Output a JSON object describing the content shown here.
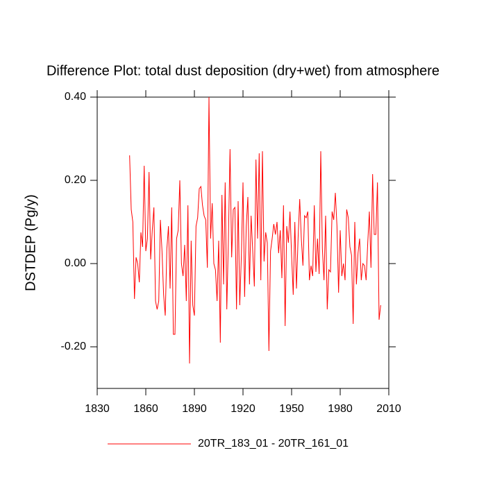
{
  "chart_data": {
    "type": "line",
    "title": "Difference Plot: total dust deposition (dry+wet) from atmosphere",
    "ylabel": "DSTDEP  (Pg/y)",
    "x": [
      1850,
      1851,
      1852,
      1853,
      1854,
      1855,
      1856,
      1857,
      1858,
      1859,
      1860,
      1861,
      1862,
      1863,
      1864,
      1865,
      1866,
      1867,
      1868,
      1869,
      1870,
      1871,
      1872,
      1873,
      1874,
      1875,
      1876,
      1877,
      1878,
      1879,
      1880,
      1881,
      1882,
      1883,
      1884,
      1885,
      1886,
      1887,
      1888,
      1889,
      1890,
      1891,
      1892,
      1893,
      1894,
      1895,
      1896,
      1897,
      1898,
      1899,
      1900,
      1901,
      1902,
      1903,
      1904,
      1905,
      1906,
      1907,
      1908,
      1909,
      1910,
      1911,
      1912,
      1913,
      1914,
      1915,
      1916,
      1917,
      1918,
      1919,
      1920,
      1921,
      1922,
      1923,
      1924,
      1925,
      1926,
      1927,
      1928,
      1929,
      1930,
      1931,
      1932,
      1933,
      1934,
      1935,
      1936,
      1937,
      1938,
      1939,
      1940,
      1941,
      1942,
      1943,
      1944,
      1945,
      1946,
      1947,
      1948,
      1949,
      1950,
      1951,
      1952,
      1953,
      1954,
      1955,
      1956,
      1957,
      1958,
      1959,
      1960,
      1961,
      1962,
      1963,
      1964,
      1965,
      1966,
      1967,
      1968,
      1969,
      1970,
      1971,
      1972,
      1973,
      1974,
      1975,
      1976,
      1977,
      1978,
      1979,
      1980,
      1981,
      1982,
      1983,
      1984,
      1985,
      1986,
      1987,
      1988,
      1989,
      1990,
      1991,
      1992,
      1993,
      1994,
      1995,
      1996,
      1997,
      1998,
      1999,
      2000,
      2001,
      2002,
      2003,
      2004,
      2005
    ],
    "series": [
      {
        "name": "20TR_183_01 - 20TR_161_01",
        "color": "#ff0000",
        "values": [
          0.26,
          0.13,
          0.1,
          -0.085,
          0.015,
          0.0,
          -0.045,
          0.075,
          0.04,
          0.235,
          0.03,
          0.06,
          0.22,
          0.01,
          0.08,
          0.135,
          -0.09,
          -0.11,
          -0.09,
          0.105,
          0.03,
          -0.075,
          -0.125,
          0.035,
          0.09,
          -0.06,
          0.135,
          -0.17,
          -0.17,
          0.06,
          0.08,
          0.2,
          0.0,
          -0.03,
          0.045,
          -0.09,
          0.14,
          -0.24,
          0.055,
          -0.1,
          -0.125,
          0.09,
          0.11,
          0.18,
          0.185,
          0.14,
          0.115,
          0.105,
          -0.01,
          0.4,
          0.06,
          0.145,
          0.0,
          -0.015,
          -0.09,
          0.055,
          -0.19,
          0.165,
          -0.05,
          0.195,
          -0.11,
          0.06,
          0.275,
          0.015,
          0.13,
          0.135,
          -0.11,
          0.15,
          -0.1,
          0.02,
          0.195,
          -0.08,
          0.09,
          0.16,
          -0.05,
          0.115,
          0.03,
          -0.055,
          0.25,
          0.06,
          0.265,
          -0.04,
          0.27,
          0.005,
          0.075,
          0.05,
          -0.21,
          0.03,
          0.06,
          0.095,
          0.07,
          0.1,
          0.025,
          0.08,
          -0.035,
          0.14,
          -0.15,
          0.09,
          0.05,
          0.125,
          0.02,
          -0.075,
          0.1,
          -0.06,
          0.06,
          0.155,
          0.06,
          -0.005,
          0.115,
          0.11,
          0.125,
          -0.04,
          -0.005,
          -0.03,
          0.14,
          -0.02,
          0.06,
          -0.025,
          0.27,
          0.035,
          -0.04,
          0.115,
          -0.11,
          -0.015,
          -0.02,
          0.125,
          0.105,
          0.17,
          0.09,
          -0.07,
          0.08,
          -0.03,
          0.0,
          -0.04,
          0.13,
          0.11,
          0.04,
          0.02,
          -0.145,
          0.1,
          -0.05,
          0.025,
          0.06,
          -0.04,
          0.0,
          -0.005,
          -0.04,
          0.05,
          0.125,
          -0.01,
          0.215,
          0.07,
          0.07,
          0.195,
          -0.135,
          -0.1
        ]
      }
    ],
    "xlim": [
      1830,
      2010
    ],
    "xticks": [
      1830,
      1860,
      1890,
      1920,
      1950,
      1980,
      2010
    ],
    "ylim": [
      -0.3,
      0.4
    ],
    "yticks": [
      {
        "value": -0.2,
        "label": "-0.20"
      },
      {
        "value": 0,
        "label": "0.00"
      },
      {
        "value": 0.2,
        "label": "0.20"
      },
      {
        "value": 0.4,
        "label": "0.40"
      }
    ],
    "grid": false,
    "legend": "bottom"
  }
}
